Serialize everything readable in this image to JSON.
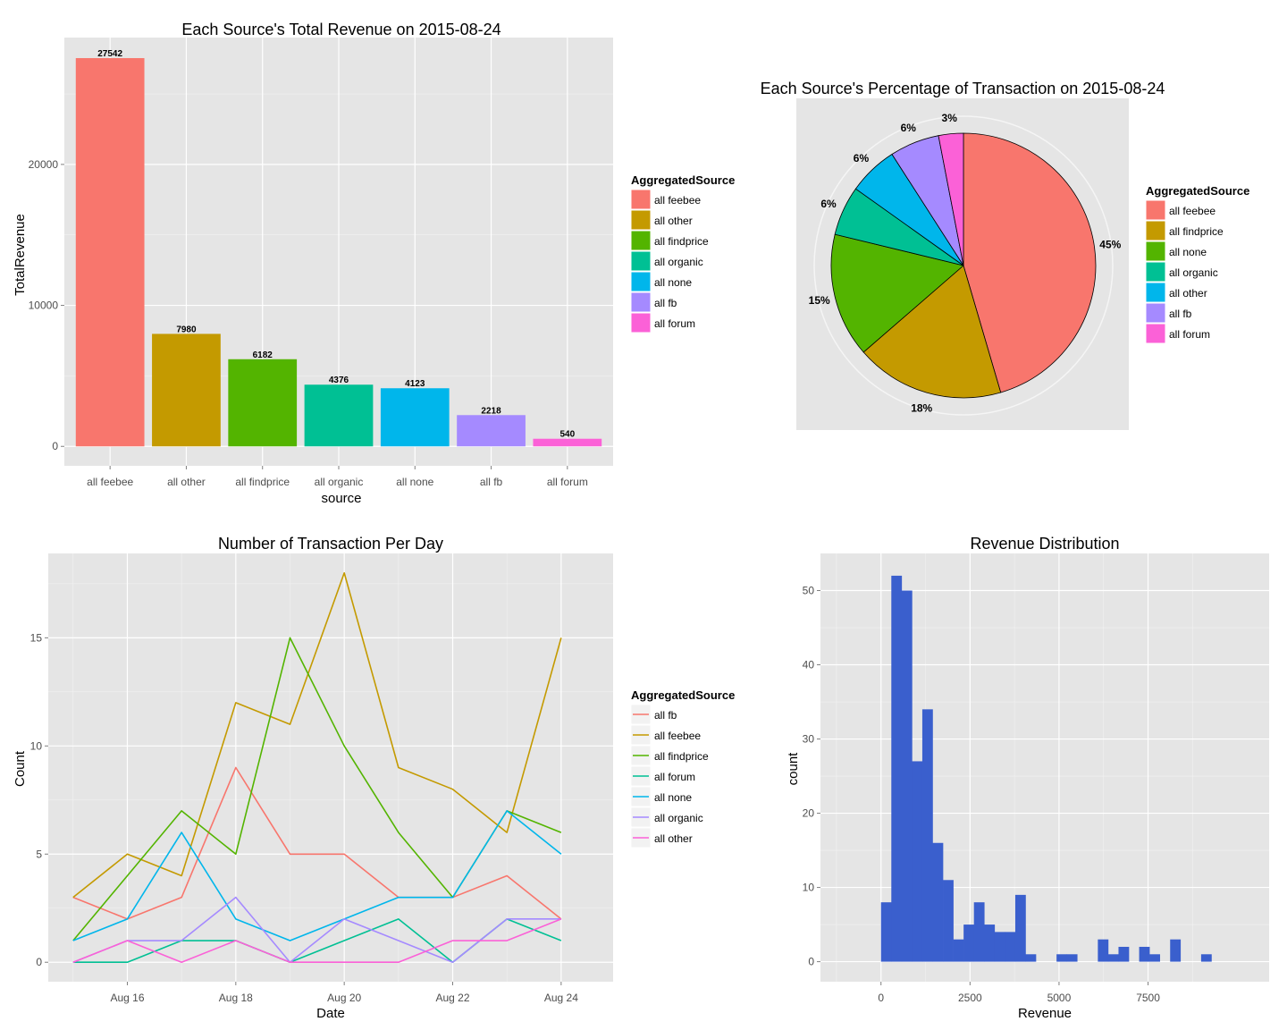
{
  "chart_data": [
    {
      "type": "bar",
      "title": "Each Source's Total Revenue on 2015-08-24",
      "xlabel": "source",
      "ylabel": "TotalRevenue",
      "categories": [
        "all feebee",
        "all other",
        "all findprice",
        "all organic",
        "all none",
        "all fb",
        "all forum"
      ],
      "values": [
        27542,
        7980,
        6182,
        4376,
        4123,
        2218,
        540
      ],
      "data_labels": [
        "27542",
        "7980",
        "6182",
        "4376",
        "4123",
        "2218",
        "540"
      ],
      "colors": [
        "#F8766D",
        "#C49A00",
        "#53B400",
        "#00C094",
        "#00B6EB",
        "#A58AFF",
        "#FB61D7"
      ],
      "yticks": [
        0,
        10000,
        20000
      ],
      "ytick_labels": [
        "0",
        "10000",
        "20000"
      ],
      "ylim": [
        -1380,
        29000
      ],
      "legend": {
        "title": "AggregatedSource",
        "position": "right",
        "entries": [
          "all feebee",
          "all other",
          "all findprice",
          "all organic",
          "all none",
          "all fb",
          "all forum"
        ]
      },
      "grid": true
    },
    {
      "type": "pie",
      "title": "Each Source's Percentage of Transaction on 2015-08-24",
      "slices": [
        {
          "name": "all feebee",
          "value": 45,
          "label": "45%",
          "color": "#F8766D"
        },
        {
          "name": "all findprice",
          "value": 18,
          "label": "18%",
          "color": "#C49A00"
        },
        {
          "name": "all none",
          "value": 15,
          "label": "15%",
          "color": "#53B400"
        },
        {
          "name": "all organic",
          "value": 6,
          "label": "6%",
          "color": "#00C094"
        },
        {
          "name": "all other",
          "value": 6,
          "label": "6%",
          "color": "#00B6EB"
        },
        {
          "name": "all fb",
          "value": 6,
          "label": "6%",
          "color": "#A58AFF"
        },
        {
          "name": "all forum",
          "value": 3,
          "label": "3%",
          "color": "#FB61D7"
        }
      ],
      "legend": {
        "title": "AggregatedSource",
        "position": "right",
        "entries": [
          "all feebee",
          "all findprice",
          "all none",
          "all organic",
          "all other",
          "all fb",
          "all forum"
        ]
      }
    },
    {
      "type": "line",
      "title": "Number of Transaction Per Day",
      "xlabel": "Date",
      "ylabel": "Count",
      "x": [
        "2015-08-15",
        "2015-08-16",
        "2015-08-17",
        "2015-08-18",
        "2015-08-19",
        "2015-08-20",
        "2015-08-21",
        "2015-08-22",
        "2015-08-23",
        "2015-08-24"
      ],
      "xticks": [
        "2015-08-16",
        "2015-08-18",
        "2015-08-20",
        "2015-08-22",
        "2015-08-24"
      ],
      "xtick_labels": [
        "Aug 16",
        "Aug 18",
        "Aug 20",
        "Aug 22",
        "Aug 24"
      ],
      "xlim": [
        "2015-08-14 13:00",
        "2015-08-24 23:00"
      ],
      "yticks": [
        0,
        5,
        10,
        15
      ],
      "ytick_labels": [
        "0",
        "5",
        "10",
        "15"
      ],
      "ylim": [
        -0.9,
        18.9
      ],
      "series": [
        {
          "name": "all fb",
          "color": "#F8766D",
          "values": [
            3,
            2,
            3,
            9,
            5,
            5,
            3,
            3,
            4,
            2
          ]
        },
        {
          "name": "all feebee",
          "color": "#C49A00",
          "values": [
            3,
            5,
            4,
            12,
            11,
            18,
            9,
            8,
            6,
            15
          ]
        },
        {
          "name": "all findprice",
          "color": "#53B400",
          "values": [
            1,
            4,
            7,
            5,
            15,
            10,
            6,
            3,
            7,
            6
          ]
        },
        {
          "name": "all forum",
          "color": "#00C094",
          "values": [
            0,
            0,
            1,
            1,
            0,
            1,
            2,
            0,
            2,
            1
          ]
        },
        {
          "name": "all none",
          "color": "#00B6EB",
          "values": [
            1,
            2,
            6,
            2,
            1,
            2,
            3,
            3,
            7,
            5
          ]
        },
        {
          "name": "all organic",
          "color": "#A58AFF",
          "values": [
            0,
            1,
            1,
            3,
            0,
            2,
            1,
            0,
            2,
            2
          ]
        },
        {
          "name": "all other",
          "color": "#FB61D7",
          "values": [
            0,
            1,
            0,
            1,
            0,
            0,
            0,
            1,
            1,
            2
          ]
        }
      ],
      "legend": {
        "title": "AggregatedSource",
        "position": "right",
        "entries": [
          "all fb",
          "all feebee",
          "all findprice",
          "all forum",
          "all none",
          "all organic",
          "all other"
        ]
      },
      "grid": true
    },
    {
      "type": "bar",
      "subtype": "histogram",
      "title": "Revenue Distribution",
      "xlabel": "Revenue",
      "ylabel": "count",
      "color": "#3A5FCD",
      "bin_start": 0,
      "bin_width": 290,
      "counts": [
        8,
        52,
        50,
        27,
        34,
        16,
        11,
        3,
        5,
        8,
        5,
        4,
        4,
        9,
        1,
        0,
        0,
        1,
        1,
        0,
        0,
        3,
        1,
        2,
        0,
        2,
        1,
        0,
        3,
        0,
        0,
        1
      ],
      "xticks": [
        0,
        2500,
        5000,
        7500
      ],
      "xtick_labels": [
        "0",
        "2500",
        "5000",
        "7500"
      ],
      "xlim": [
        -1700,
        10900
      ],
      "yticks": [
        0,
        10,
        20,
        30,
        40,
        50
      ],
      "ytick_labels": [
        "0",
        "10",
        "20",
        "30",
        "40",
        "50"
      ],
      "ylim": [
        -2.7,
        55
      ],
      "grid": true
    }
  ]
}
